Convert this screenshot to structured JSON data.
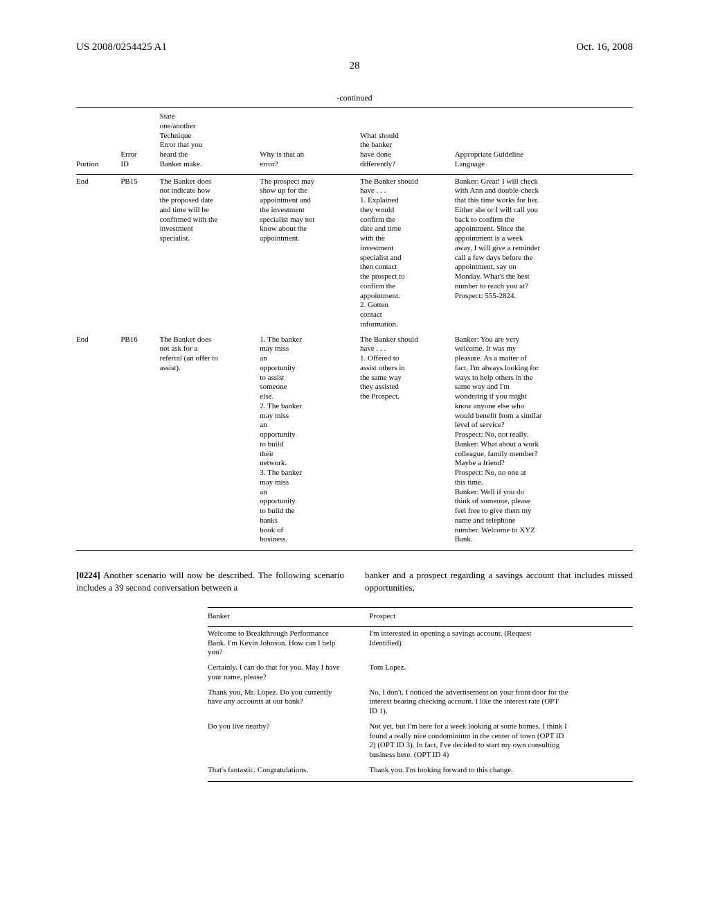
{
  "header": {
    "left": "US 2008/0254425 A1",
    "right": "Oct. 16, 2008",
    "page_number": "28"
  },
  "continued_label": "-continued",
  "error_table": {
    "columns": [
      "Portion",
      "Error\nID",
      "State\none/another\nTechnique\nError that you\nheard the\nBanker make.",
      "Why is that an\nerror?",
      "What should\nthe banker\nhave done\ndifferently?",
      "Appropriate Guideline\nLanguage"
    ],
    "rows": [
      {
        "portion": "End",
        "error_id": "PB15",
        "technique": "The Banker does\nnot indicate how\nthe proposed date\nand time will be\nconfirmed with the\ninvestment\nspecialist.",
        "why": "The prospect may\nshow up for the\nappointment and\nthe investment\nspecialist may not\nknow about the\nappointment.",
        "should": "The Banker should\nhave . . .\n1. Explained\nthey would\nconfirm the\ndate and time\nwith the\ninvestment\nspecialist and\nthen contact\nthe prospect to\nconfirm the\nappointment.\n2. Gotten\ncontact\ninformation.",
        "guideline": "Banker: Great! I will check\nwith Ann and double-check\nthat this time works for her.\nEither she or I will call you\nback to confirm the\nappointment. Since the\nappointment is a week\naway, I will give a reminder\ncall a few days before the\nappointment, say on\nMonday. What's the best\nnumber to reach you at?\nProspect: 555-2824."
      },
      {
        "portion": "End",
        "error_id": "PB16",
        "technique": "The Banker does\nnot ask for a\nreferral (an offer to\nassist).",
        "why": "1. The banker\nmay miss\nan\nopportunity\nto assist\nsomeone\nelse.\n2. The banker\nmay miss\nan\nopportunity\nto build\ntheir\nnetwork.\n3. The banker\nmay miss\nan\nopportunity\nto build the\nbanks\nbook of\nbusiness.",
        "should": "The Banker should\nhave . . .\n1. Offered to\nassist others in\nthe same way\nthey assisted\nthe Prospect.",
        "guideline": "Banker: You are very\nwelcome. It was my\npleasure. As a matter of\nfact, I'm always looking for\nways to help others in the\nsame way and I'm\nwondering if you might\nknow anyone else who\nwould benefit from a similar\nlevel of service?\nProspect: No, not really.\nBanker: What about a work\ncolleague, family member?\nMaybe a friend?\nProspect: No, no one at\nthis time.\nBanker: Well if you do\nthink of someone, please\nfeel free to give them my\nname and telephone\nnumber. Welcome to XYZ\nBank."
      }
    ]
  },
  "paragraph": {
    "number": "[0224]",
    "left": "Another scenario will now be described. The following scenario includes a 39 second conversation between a",
    "right": "banker and a prospect regarding a savings account that includes missed opportunities,"
  },
  "conversation_table": {
    "columns": [
      "Banker",
      "Prospect"
    ],
    "rows": [
      {
        "banker": "Welcome to Breakthrough Performance\nBank. I'm Kevin Johnson. How can I help\nyou?",
        "prospect": "I'm interested in opening a savings account. (Request\nIdentified)"
      },
      {
        "banker": "Certainly. I can do that for you. May I have\nyour name, please?",
        "prospect": "Tom Lopez."
      },
      {
        "banker": "Thank you, Mr. Lopez. Do you currently\nhave any accounts at our bank?",
        "prospect": "No, I don't. I noticed the advertisement on your front door for the\ninterest bearing checking account. I like the interest rate (OPT\nID 1)."
      },
      {
        "banker": "Do you live nearby?",
        "prospect": "Not yet, but I'm here for a week looking at some homes. I think I\nfound a really nice condominium in the center of town (OPT ID\n2) (OPT ID 3). In fact, I've decided to start my own consulting\nbusiness here. (OPT ID 4)"
      },
      {
        "banker": "That's fantastic. Congratulations.",
        "prospect": "Thank you. I'm looking forward to this change."
      }
    ]
  }
}
